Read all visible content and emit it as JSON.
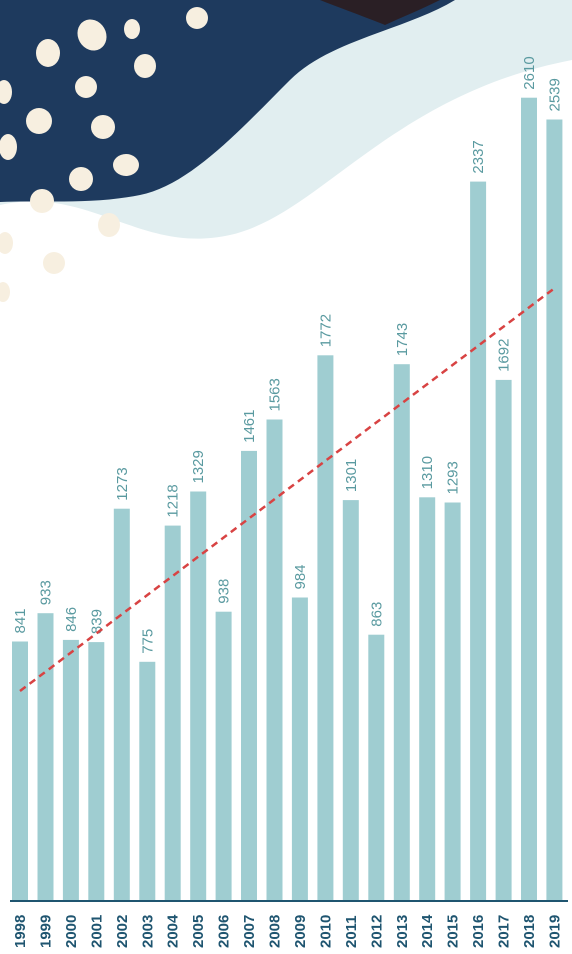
{
  "colors": {
    "bar": "#9fcdd1",
    "value_label": "#5a9aa0",
    "axis": "#1f5570",
    "x_label": "#1f5570",
    "trend": "#d84343",
    "background_light": "#e1eef0",
    "background_dark": "#1e3a5e",
    "spot": "#f7efe0"
  },
  "chart_data": {
    "type": "bar",
    "categories": [
      "1998",
      "1999",
      "2000",
      "2001",
      "2002",
      "2003",
      "2004",
      "2005",
      "2006",
      "2007",
      "2008",
      "2009",
      "2010",
      "2011",
      "2012",
      "2013",
      "2014",
      "2015",
      "2016",
      "2017",
      "2018",
      "2019"
    ],
    "values": [
      841,
      933,
      846,
      839,
      1273,
      775,
      1218,
      1329,
      938,
      1461,
      1563,
      984,
      1772,
      1301,
      863,
      1743,
      1310,
      1293,
      2337,
      1692,
      2610,
      2539
    ],
    "value_labels": [
      "841",
      "933",
      "846",
      "839",
      "1273",
      "775",
      "1218",
      "1329",
      "938",
      "1461",
      "1563",
      "984",
      "1772",
      "1301",
      "863",
      "1743",
      "1310",
      "1293",
      "2337",
      "1692",
      "2610",
      "2539"
    ],
    "trendline": {
      "style": "dashed",
      "color": "#d84343",
      "start_value": 680,
      "end_value": 1990
    },
    "title": "",
    "xlabel": "",
    "ylabel": "",
    "ylim": [
      0,
      2700
    ],
    "grid": false,
    "legend": "none"
  }
}
